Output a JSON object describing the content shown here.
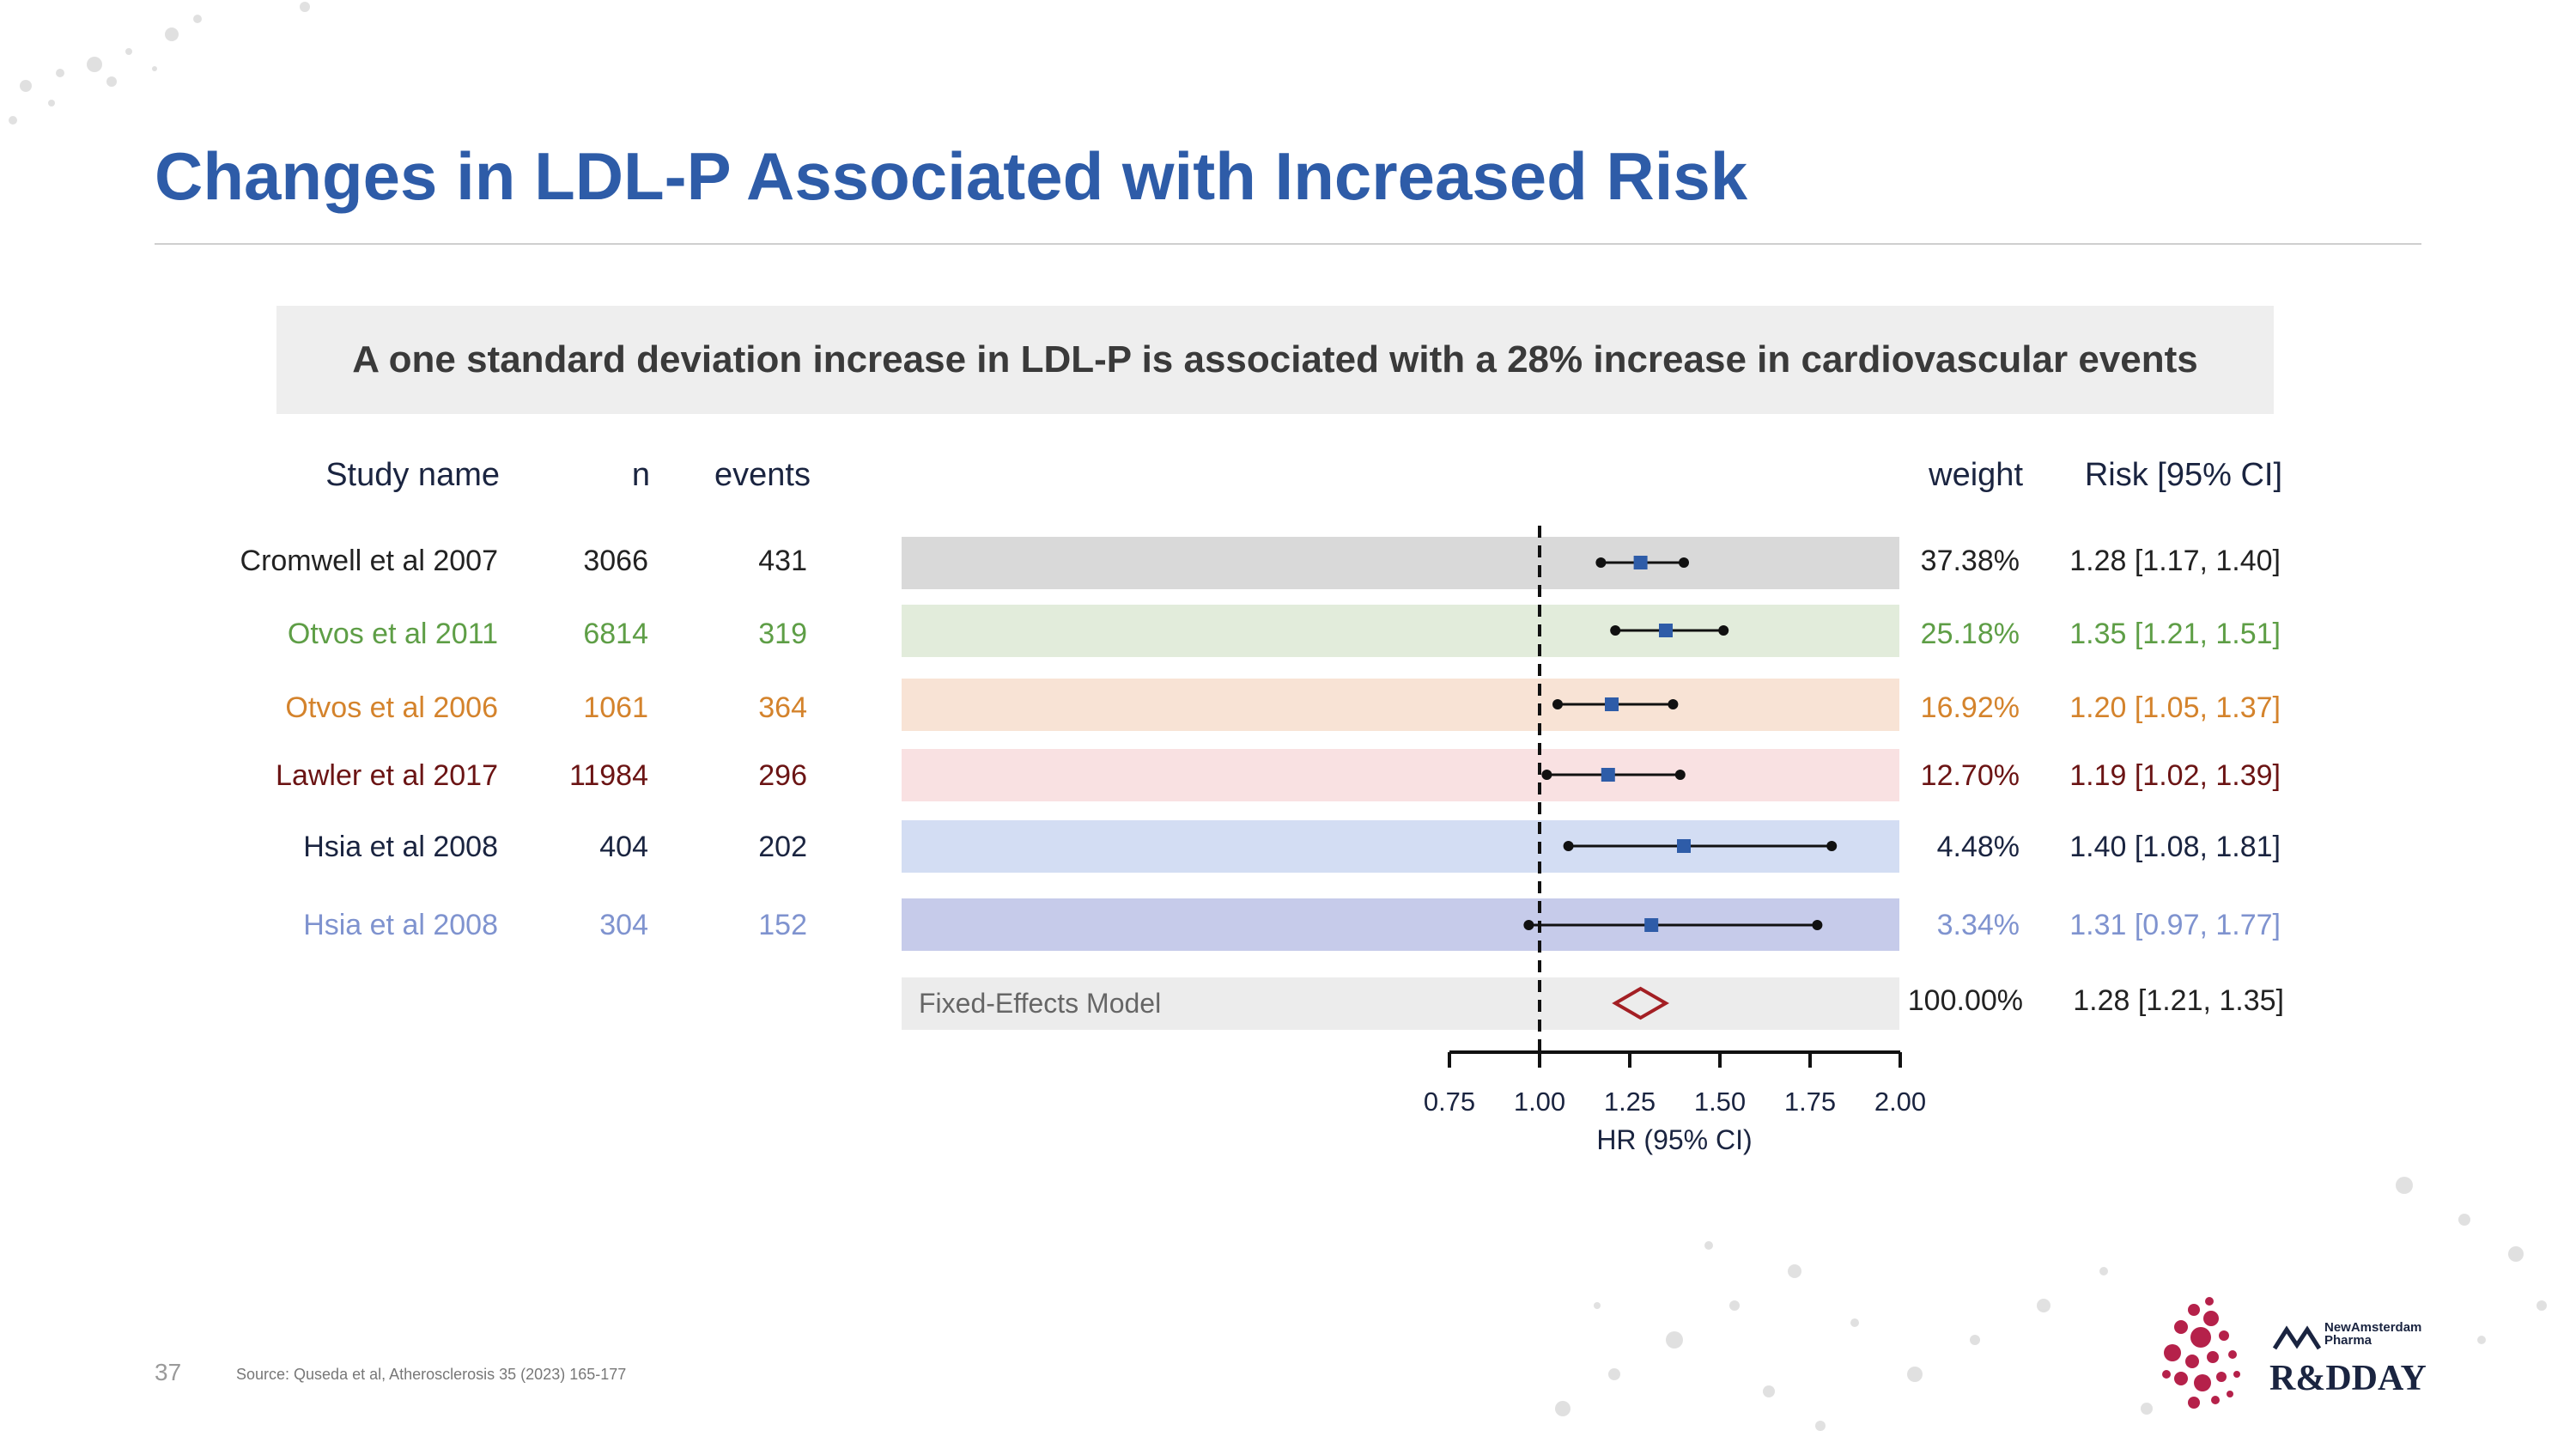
{
  "slide": {
    "title": "Changes in LDL-P Associated with Increased Risk",
    "banner": "A one standard deviation increase in LDL-P is associated with a 28% increase in cardiovascular events",
    "page_number": "37",
    "source": "Source: Quseda et al, Atherosclerosis 35 (2023) 165-177",
    "logo": {
      "company": "NewAmsterdam Pharma",
      "event": "R&DDAY"
    }
  },
  "table": {
    "headers": {
      "study": "Study name",
      "n": "n",
      "events": "events",
      "weight": "weight",
      "risk": "Risk [95% CI]"
    },
    "rows": [
      {
        "study": "Cromwell et al 2007",
        "n": "3066",
        "events": "431",
        "weight": "37.38%",
        "risk": "1.28 [1.17, 1.40]",
        "text_color": "#222222",
        "band_color": "#d9d9d9"
      },
      {
        "study": "Otvos et al 2011",
        "n": "6814",
        "events": "319",
        "weight": "25.18%",
        "risk": "1.35 [1.21, 1.51]",
        "text_color": "#5e9e46",
        "band_color": "#e2ecdb"
      },
      {
        "study": "Otvos et al 2006",
        "n": "1061",
        "events": "364",
        "weight": "16.92%",
        "risk": "1.20 [1.05, 1.37]",
        "text_color": "#d4832c",
        "band_color": "#f8e3d5"
      },
      {
        "study": "Lawler et al 2017",
        "n": "11984",
        "events": "296",
        "weight": "12.70%",
        "risk": "1.19 [1.02, 1.39]",
        "text_color": "#6b1414",
        "band_color": "#f9e1e2"
      },
      {
        "study": "Hsia et al 2008",
        "n": "404",
        "events": "202",
        "weight": "4.48%",
        "risk": "1.40 [1.08, 1.81]",
        "text_color": "#1a2440",
        "band_color": "#d3ddf3"
      },
      {
        "study": "Hsia et al 2008",
        "n": "304",
        "events": "152",
        "weight": "3.34%",
        "risk": "1.31 [0.97, 1.77]",
        "text_color": "#7f93cf",
        "band_color": "#c6cbea"
      }
    ],
    "summary": {
      "label": "Fixed-Effects Model",
      "weight": "100.00%",
      "risk": "1.28 [1.21, 1.35]",
      "band_color": "#ececec"
    }
  },
  "chart_data": {
    "type": "forest",
    "xlabel": "HR (95% CI)",
    "xlim": [
      0.75,
      2.0
    ],
    "ticks": [
      0.75,
      1.0,
      1.25,
      1.5,
      1.75,
      2.0
    ],
    "tick_labels": [
      "0.75",
      "1.00",
      "1.25",
      "1.50",
      "1.75",
      "2.00"
    ],
    "reference_line": 1.0,
    "studies": [
      {
        "hr": 1.28,
        "lo": 1.17,
        "hi": 1.4
      },
      {
        "hr": 1.35,
        "lo": 1.21,
        "hi": 1.51
      },
      {
        "hr": 1.2,
        "lo": 1.05,
        "hi": 1.37
      },
      {
        "hr": 1.19,
        "lo": 1.02,
        "hi": 1.39
      },
      {
        "hr": 1.4,
        "lo": 1.08,
        "hi": 1.81
      },
      {
        "hr": 1.31,
        "lo": 0.97,
        "hi": 1.77
      }
    ],
    "pooled": {
      "hr": 1.28,
      "lo": 1.21,
      "hi": 1.35
    },
    "colors": {
      "marker": "#2e5ca8",
      "whisker": "#111111",
      "diamond": "#a31f24",
      "axis": "#111111"
    }
  }
}
